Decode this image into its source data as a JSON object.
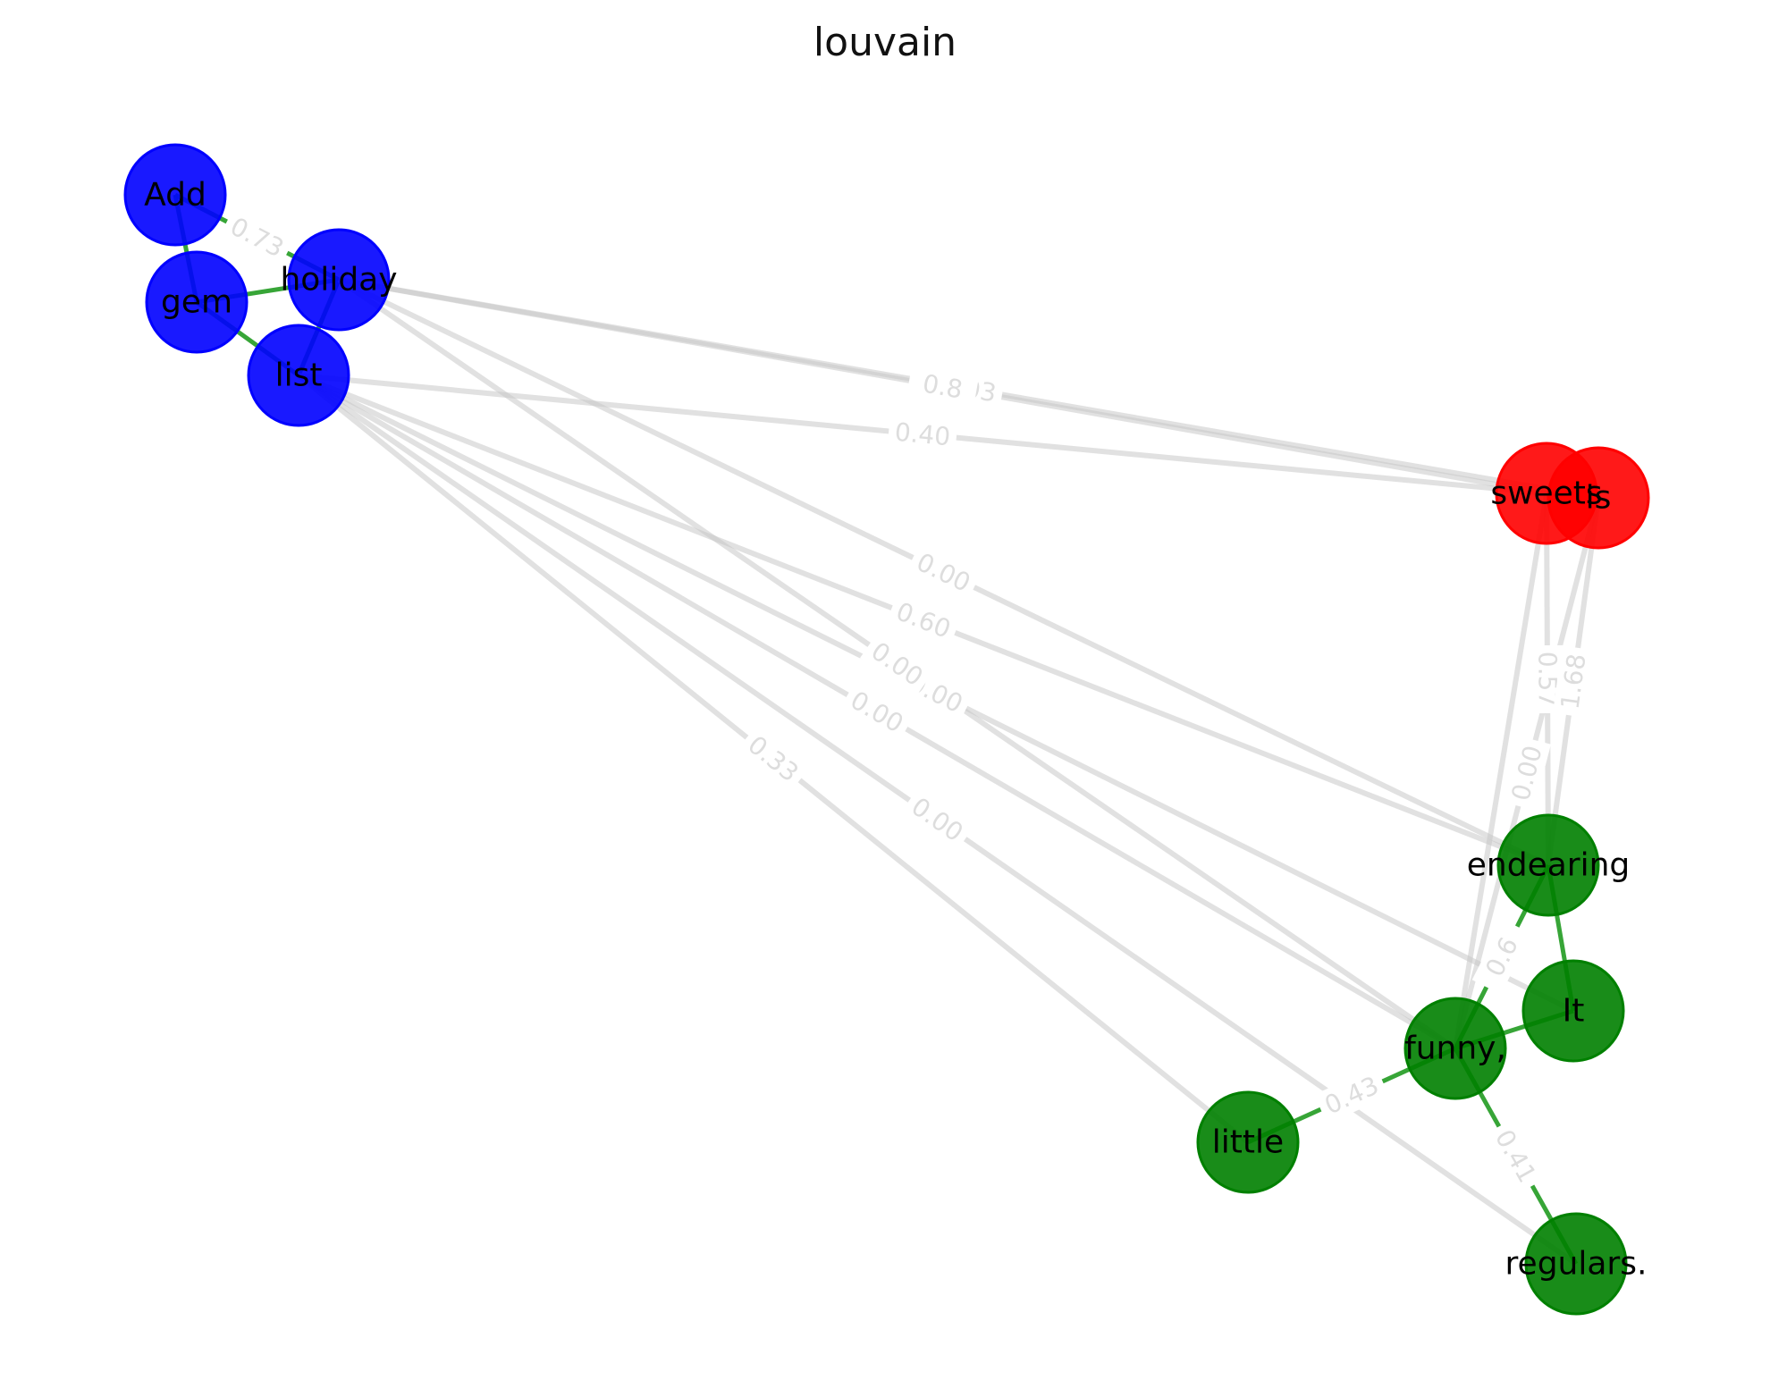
{
  "title": "louvain",
  "communities": {
    "blue": "#0000ff",
    "red": "#ff0000",
    "green": "#008000",
    "inter_edge": "#c8c8c8",
    "intra_edge": "#2ca02c"
  },
  "nodes": [
    {
      "id": "Add",
      "label": "Add",
      "community": "blue"
    },
    {
      "id": "holiday",
      "label": "holiday",
      "community": "blue"
    },
    {
      "id": "gem",
      "label": "gem",
      "community": "blue"
    },
    {
      "id": "list",
      "label": "list",
      "community": "blue"
    },
    {
      "id": "sweets",
      "label": "sweets",
      "community": "red"
    },
    {
      "id": "is",
      "label": "is",
      "community": "red"
    },
    {
      "id": "endearing",
      "label": "endearing",
      "community": "green"
    },
    {
      "id": "It",
      "label": "It",
      "community": "green"
    },
    {
      "id": "funny",
      "label": "funny,",
      "community": "green"
    },
    {
      "id": "little",
      "label": "little",
      "community": "green"
    },
    {
      "id": "regulars",
      "label": "regulars.",
      "community": "green"
    }
  ],
  "edges": [
    {
      "source": "Add",
      "target": "holiday",
      "weight": "0.73",
      "intra": true
    },
    {
      "source": "Add",
      "target": "gem",
      "weight": "",
      "intra": true
    },
    {
      "source": "gem",
      "target": "holiday",
      "weight": "",
      "intra": true
    },
    {
      "source": "gem",
      "target": "list",
      "weight": "",
      "intra": true
    },
    {
      "source": "holiday",
      "target": "list",
      "weight": "",
      "intra": true
    },
    {
      "source": "holiday",
      "target": "is",
      "weight": "1.03",
      "intra": false
    },
    {
      "source": "holiday",
      "target": "sweets",
      "weight": "0.8",
      "intra": false
    },
    {
      "source": "list",
      "target": "sweets",
      "weight": "0.40",
      "intra": false
    },
    {
      "source": "holiday",
      "target": "endearing",
      "weight": "0.00",
      "intra": false
    },
    {
      "source": "list",
      "target": "endearing",
      "weight": "0.60",
      "intra": false
    },
    {
      "source": "list",
      "target": "It",
      "weight": "0.00",
      "intra": false
    },
    {
      "source": "list",
      "target": "funny",
      "weight": "0.00",
      "intra": false
    },
    {
      "source": "holiday",
      "target": "funny",
      "weight": "0.00",
      "intra": false
    },
    {
      "source": "list",
      "target": "regulars",
      "weight": "0.00",
      "intra": false
    },
    {
      "source": "list",
      "target": "little",
      "weight": "0.33",
      "intra": false
    },
    {
      "source": "sweets",
      "target": "endearing",
      "weight": "0.57",
      "intra": false
    },
    {
      "source": "is",
      "target": "funny",
      "weight": "0.00",
      "intra": false
    },
    {
      "source": "is",
      "target": "endearing",
      "weight": "1.68",
      "intra": false
    },
    {
      "source": "sweets",
      "target": "funny",
      "weight": "",
      "intra": false
    },
    {
      "source": "endearing",
      "target": "funny",
      "weight": "0.6",
      "intra": true
    },
    {
      "source": "endearing",
      "target": "It",
      "weight": "",
      "intra": true
    },
    {
      "source": "funny",
      "target": "It",
      "weight": "",
      "intra": true
    },
    {
      "source": "funny",
      "target": "little",
      "weight": "0.43",
      "intra": true
    },
    {
      "source": "funny",
      "target": "regulars",
      "weight": "0.41",
      "intra": true
    }
  ]
}
